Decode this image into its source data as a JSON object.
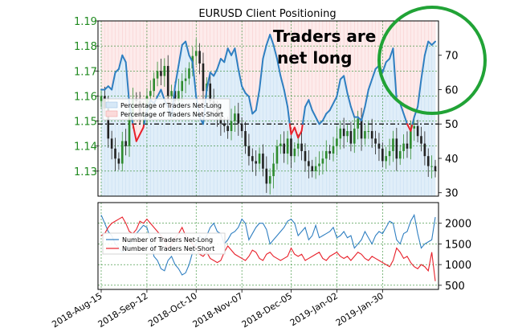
{
  "chart_data": [
    {
      "type": "line",
      "title": "EURUSD Client Positioning",
      "xlabel": "",
      "ylabel": "",
      "ylim": [
        1.12,
        1.19
      ],
      "y2lim": [
        29,
        80
      ],
      "yticks": [
        "1.13",
        "1.14",
        "1.15",
        "1.16",
        "1.17",
        "1.18",
        "1.19"
      ],
      "y2ticks": [
        "30",
        "40",
        "50",
        "60",
        "70"
      ],
      "xticks": [
        "2018-Aug-15",
        "2018-Sep-12",
        "2018-Oct-10",
        "2018-Nov-07",
        "2018-Dec-05",
        "2019-Jan-02",
        "2019-Jan-30"
      ],
      "grid": true,
      "legend_position": "middle-left",
      "annotation": "Traders are\nnet long",
      "reference_line": 50,
      "colors": {
        "net_long": "#2f7fc1",
        "net_short": "#e8202a",
        "candle_up": "#2e8b2e",
        "candle_down": "#222222",
        "long_fill": "#d6e8f7",
        "short_fill": "#fbdada",
        "circle": "#21a336",
        "axis_text_left": "#1f8a1f"
      },
      "price_close": [
        1.16,
        1.155,
        1.143,
        1.139,
        1.135,
        1.133,
        1.142,
        1.14,
        1.152,
        1.159,
        1.158,
        1.152,
        1.153,
        1.16,
        1.162,
        1.167,
        1.17,
        1.168,
        1.172,
        1.16,
        1.162,
        1.158,
        1.162,
        1.166,
        1.167,
        1.171,
        1.176,
        1.178,
        1.173,
        1.162,
        1.165,
        1.158,
        1.155,
        1.152,
        1.149,
        1.148,
        1.146,
        1.15,
        1.153,
        1.149,
        1.146,
        1.14,
        1.136,
        1.134,
        1.133,
        1.137,
        1.131,
        1.125,
        1.128,
        1.133,
        1.14,
        1.141,
        1.137,
        1.143,
        1.136,
        1.139,
        1.141,
        1.138,
        1.134,
        1.132,
        1.13,
        1.132,
        1.133,
        1.135,
        1.138,
        1.137,
        1.14,
        1.143,
        1.147,
        1.144,
        1.146,
        1.141,
        1.147,
        1.151,
        1.143,
        1.146,
        1.146,
        1.143,
        1.141,
        1.139,
        1.134,
        1.136,
        1.138,
        1.143,
        1.135,
        1.138,
        1.141,
        1.139,
        1.147,
        1.148,
        1.144,
        1.141,
        1.136,
        1.132,
        1.132,
        1.13
      ],
      "series": [
        {
          "name": "Percentage of Traders Net-Long",
          "values": [
            60,
            60,
            61,
            60,
            65,
            66,
            70,
            68,
            56,
            50,
            45,
            47,
            49,
            54,
            57,
            56,
            58,
            60,
            57,
            55,
            52,
            61,
            67,
            73,
            74,
            70,
            68,
            58,
            52,
            50,
            60,
            65,
            64,
            66,
            69,
            68,
            72,
            70,
            72,
            66,
            61,
            59,
            58,
            53,
            54,
            60,
            69,
            73,
            76,
            73,
            69,
            64,
            60,
            55,
            47,
            49,
            46,
            48,
            55,
            57,
            54,
            52,
            50,
            51,
            53,
            54,
            56,
            58,
            63,
            64,
            59,
            55,
            52,
            52,
            51,
            55,
            60,
            63,
            66,
            67,
            65,
            68,
            69,
            72,
            57,
            56,
            53,
            50,
            48,
            52,
            55,
            63,
            70,
            74,
            73,
            74
          ]
        },
        {
          "name": "Percentage of Traders Net-Short",
          "values": [
            40,
            40,
            39,
            40,
            35,
            34,
            30,
            32,
            44,
            50,
            55,
            53,
            51,
            46,
            43,
            44,
            42,
            40,
            43,
            45,
            48,
            39,
            33,
            27,
            26,
            30,
            32,
            42,
            48,
            50,
            40,
            35,
            36,
            34,
            31,
            32,
            28,
            30,
            28,
            34,
            39,
            41,
            42,
            47,
            46,
            40,
            31,
            27,
            24,
            27,
            31,
            36,
            40,
            45,
            53,
            51,
            54,
            52,
            45,
            43,
            46,
            48,
            50,
            49,
            47,
            46,
            44,
            42,
            37,
            36,
            41,
            45,
            48,
            48,
            49,
            45,
            40,
            37,
            34,
            33,
            35,
            32,
            31,
            28,
            43,
            44,
            47,
            50,
            52,
            48,
            45,
            37,
            30,
            26,
            27,
            26
          ]
        }
      ]
    },
    {
      "type": "line",
      "title": "",
      "xlabel": "",
      "ylabel": "",
      "ylim": [
        400,
        2500
      ],
      "yticks": [
        "500",
        "1000",
        "1500",
        "2000"
      ],
      "grid": true,
      "legend_position": "middle-left",
      "series": [
        {
          "name": "Number of Traders Net-Long",
          "values": [
            2200,
            2000,
            1800,
            1700,
            1500,
            1400,
            1300,
            1350,
            1500,
            1600,
            1750,
            1850,
            1950,
            1900,
            1600,
            1200,
            1100,
            900,
            850,
            1100,
            1200,
            1000,
            900,
            750,
            800,
            1000,
            1300,
            1500,
            1700,
            1600,
            1700,
            1900,
            2000,
            1800,
            1750,
            1500,
            1600,
            1750,
            1800,
            1900,
            2100,
            2000,
            1600,
            1750,
            1900,
            2000,
            2000,
            1850,
            1500,
            1600,
            1700,
            1800,
            1900,
            2050,
            2100,
            2000,
            1700,
            1800,
            1900,
            1600,
            1700,
            1950,
            1650,
            1700,
            1750,
            1800,
            1900,
            1650,
            1700,
            1800,
            1650,
            1700,
            1400,
            1500,
            1600,
            1800,
            1650,
            1500,
            1700,
            1800,
            1750,
            1900,
            2050,
            2000,
            1600,
            1500,
            1750,
            1800,
            2050,
            2200,
            1750,
            1400,
            1500,
            1550,
            1600,
            2150
          ]
        },
        {
          "name": "Number of Traders Net-Short",
          "values": [
            1700,
            1750,
            1900,
            2000,
            2050,
            2100,
            2150,
            2000,
            1800,
            1750,
            1850,
            2050,
            2000,
            2100,
            2000,
            1900,
            1800,
            1700,
            1600,
            1400,
            1500,
            1650,
            1750,
            1900,
            1700,
            1600,
            1500,
            1400,
            1250,
            1200,
            1300,
            1150,
            1100,
            1050,
            1100,
            1300,
            1450,
            1350,
            1250,
            1200,
            1150,
            1100,
            1200,
            1350,
            1300,
            1150,
            1100,
            1250,
            1300,
            1200,
            1150,
            1100,
            1150,
            1200,
            1400,
            1250,
            1200,
            1250,
            1100,
            1150,
            1200,
            1250,
            1300,
            1150,
            1100,
            1200,
            1250,
            1300,
            1200,
            1150,
            1200,
            1100,
            1200,
            1300,
            1250,
            1150,
            1100,
            1200,
            1150,
            1100,
            1050,
            1000,
            950,
            1100,
            1400,
            1300,
            1150,
            1200,
            1050,
            950,
            900,
            1000,
            950,
            850,
            1300,
            600
          ]
        }
      ]
    }
  ]
}
